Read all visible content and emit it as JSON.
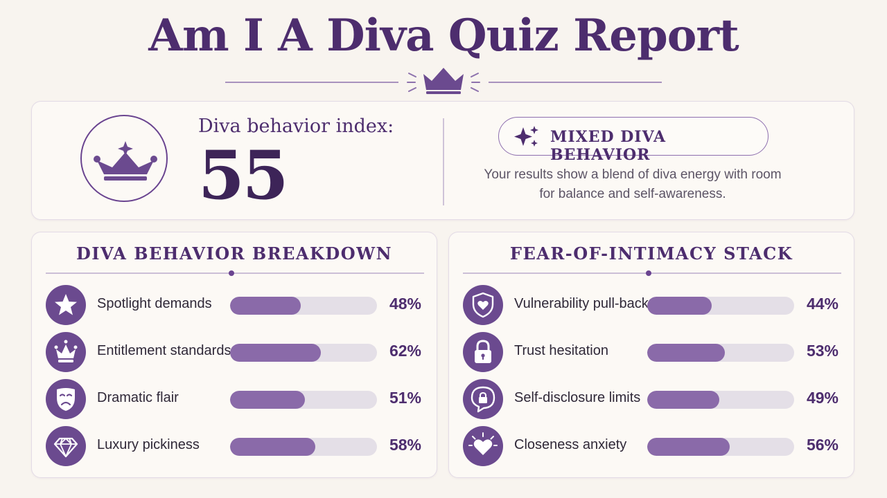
{
  "title": "Am I A Diva Quiz Report",
  "colors": {
    "primary": "#4d2d6e",
    "accent": "#6b4a8f",
    "bar": "#8a6aa9",
    "track": "#e4dfe7",
    "background": "#f8f4ef"
  },
  "score": {
    "label": "Diva behavior index:",
    "value": "55",
    "icon": "crown-icon",
    "category_badge": "MIXED DIVA BEHAVIOR",
    "badge_icon": "sparkles-icon",
    "summary": "Your results show a blend of diva energy with room for balance and self-awareness."
  },
  "diva_breakdown": {
    "title": "DIVA BEHAVIOR BREAKDOWN",
    "items": [
      {
        "label": "Spotlight demands",
        "percent": 48,
        "display": "48%",
        "icon": "star-icon"
      },
      {
        "label": "Entitlement standards",
        "percent": 62,
        "display": "62%",
        "icon": "crown-icon"
      },
      {
        "label": "Dramatic flair",
        "percent": 51,
        "display": "51%",
        "icon": "theater-mask-icon"
      },
      {
        "label": "Luxury pickiness",
        "percent": 58,
        "display": "58%",
        "icon": "diamond-icon"
      }
    ]
  },
  "intimacy_stack": {
    "title": "FEAR-OF-INTIMACY STACK",
    "items": [
      {
        "label": "Vulnerability pull-back",
        "percent": 44,
        "display": "44%",
        "icon": "shield-heart-icon"
      },
      {
        "label": "Trust hesitation",
        "percent": 53,
        "display": "53%",
        "icon": "padlock-icon"
      },
      {
        "label": "Self-disclosure limits",
        "percent": 49,
        "display": "49%",
        "icon": "speech-bubble-lock-icon"
      },
      {
        "label": "Closeness anxiety",
        "percent": 56,
        "display": "56%",
        "icon": "heart-sparkle-icon"
      }
    ]
  }
}
